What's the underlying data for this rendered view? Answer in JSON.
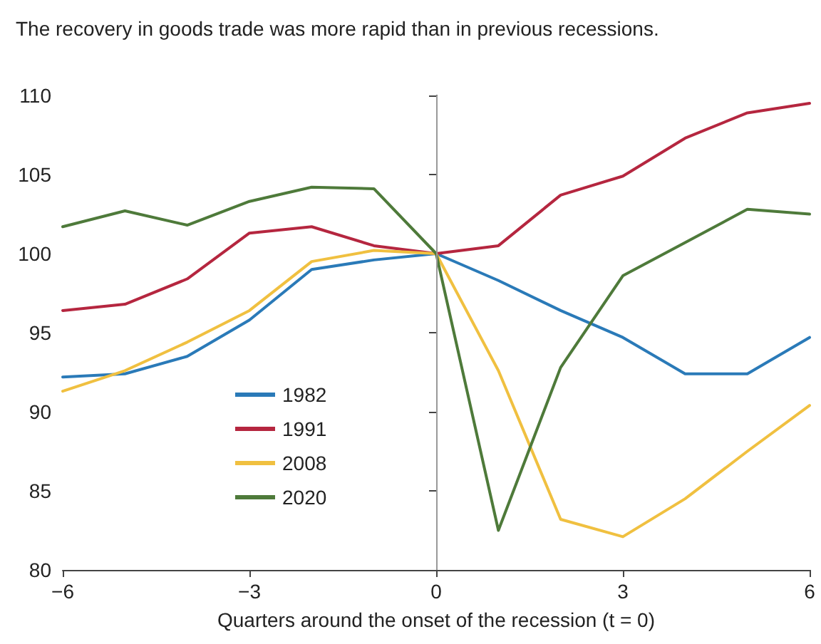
{
  "chart_data": {
    "type": "line",
    "title": "The recovery in goods trade was more rapid than in previous recessions.",
    "xlabel": "Quarters around the onset of the recession (t = 0)",
    "x": [
      -6,
      -5,
      -4,
      -3,
      -2,
      -1,
      0,
      1,
      2,
      3,
      4,
      5,
      6
    ],
    "series": [
      {
        "name": "1982",
        "color": "#2a7ab8",
        "values": [
          92.2,
          92.4,
          93.5,
          95.8,
          99.0,
          99.6,
          100,
          98.3,
          96.4,
          94.7,
          92.4,
          92.4,
          94.7
        ]
      },
      {
        "name": "1991",
        "color": "#b5263f",
        "values": [
          96.4,
          96.8,
          98.4,
          101.3,
          101.7,
          100.5,
          100,
          100.5,
          103.7,
          104.9,
          107.3,
          108.9,
          109.5
        ]
      },
      {
        "name": "2008",
        "color": "#f0c040",
        "values": [
          91.3,
          92.6,
          94.4,
          96.4,
          99.5,
          100.2,
          100,
          92.6,
          83.2,
          82.1,
          84.5,
          87.5,
          90.4
        ]
      },
      {
        "name": "2020",
        "color": "#4e7a3a",
        "values": [
          101.7,
          102.7,
          101.8,
          103.3,
          104.2,
          104.1,
          100,
          82.5,
          92.8,
          98.6,
          100.7,
          102.8,
          102.5
        ]
      }
    ],
    "xlim": [
      -6,
      6
    ],
    "xticks": [
      -6,
      -3,
      0,
      3,
      6
    ],
    "ylim": [
      80,
      110
    ],
    "yticks": [
      80,
      85,
      90,
      95,
      100,
      105,
      110
    ],
    "ref_lines": [
      {
        "axis": "x",
        "value": 0,
        "color": "#999999"
      }
    ],
    "grid": false,
    "legend": "bottom left",
    "marker": "none",
    "line_style": "solid"
  }
}
